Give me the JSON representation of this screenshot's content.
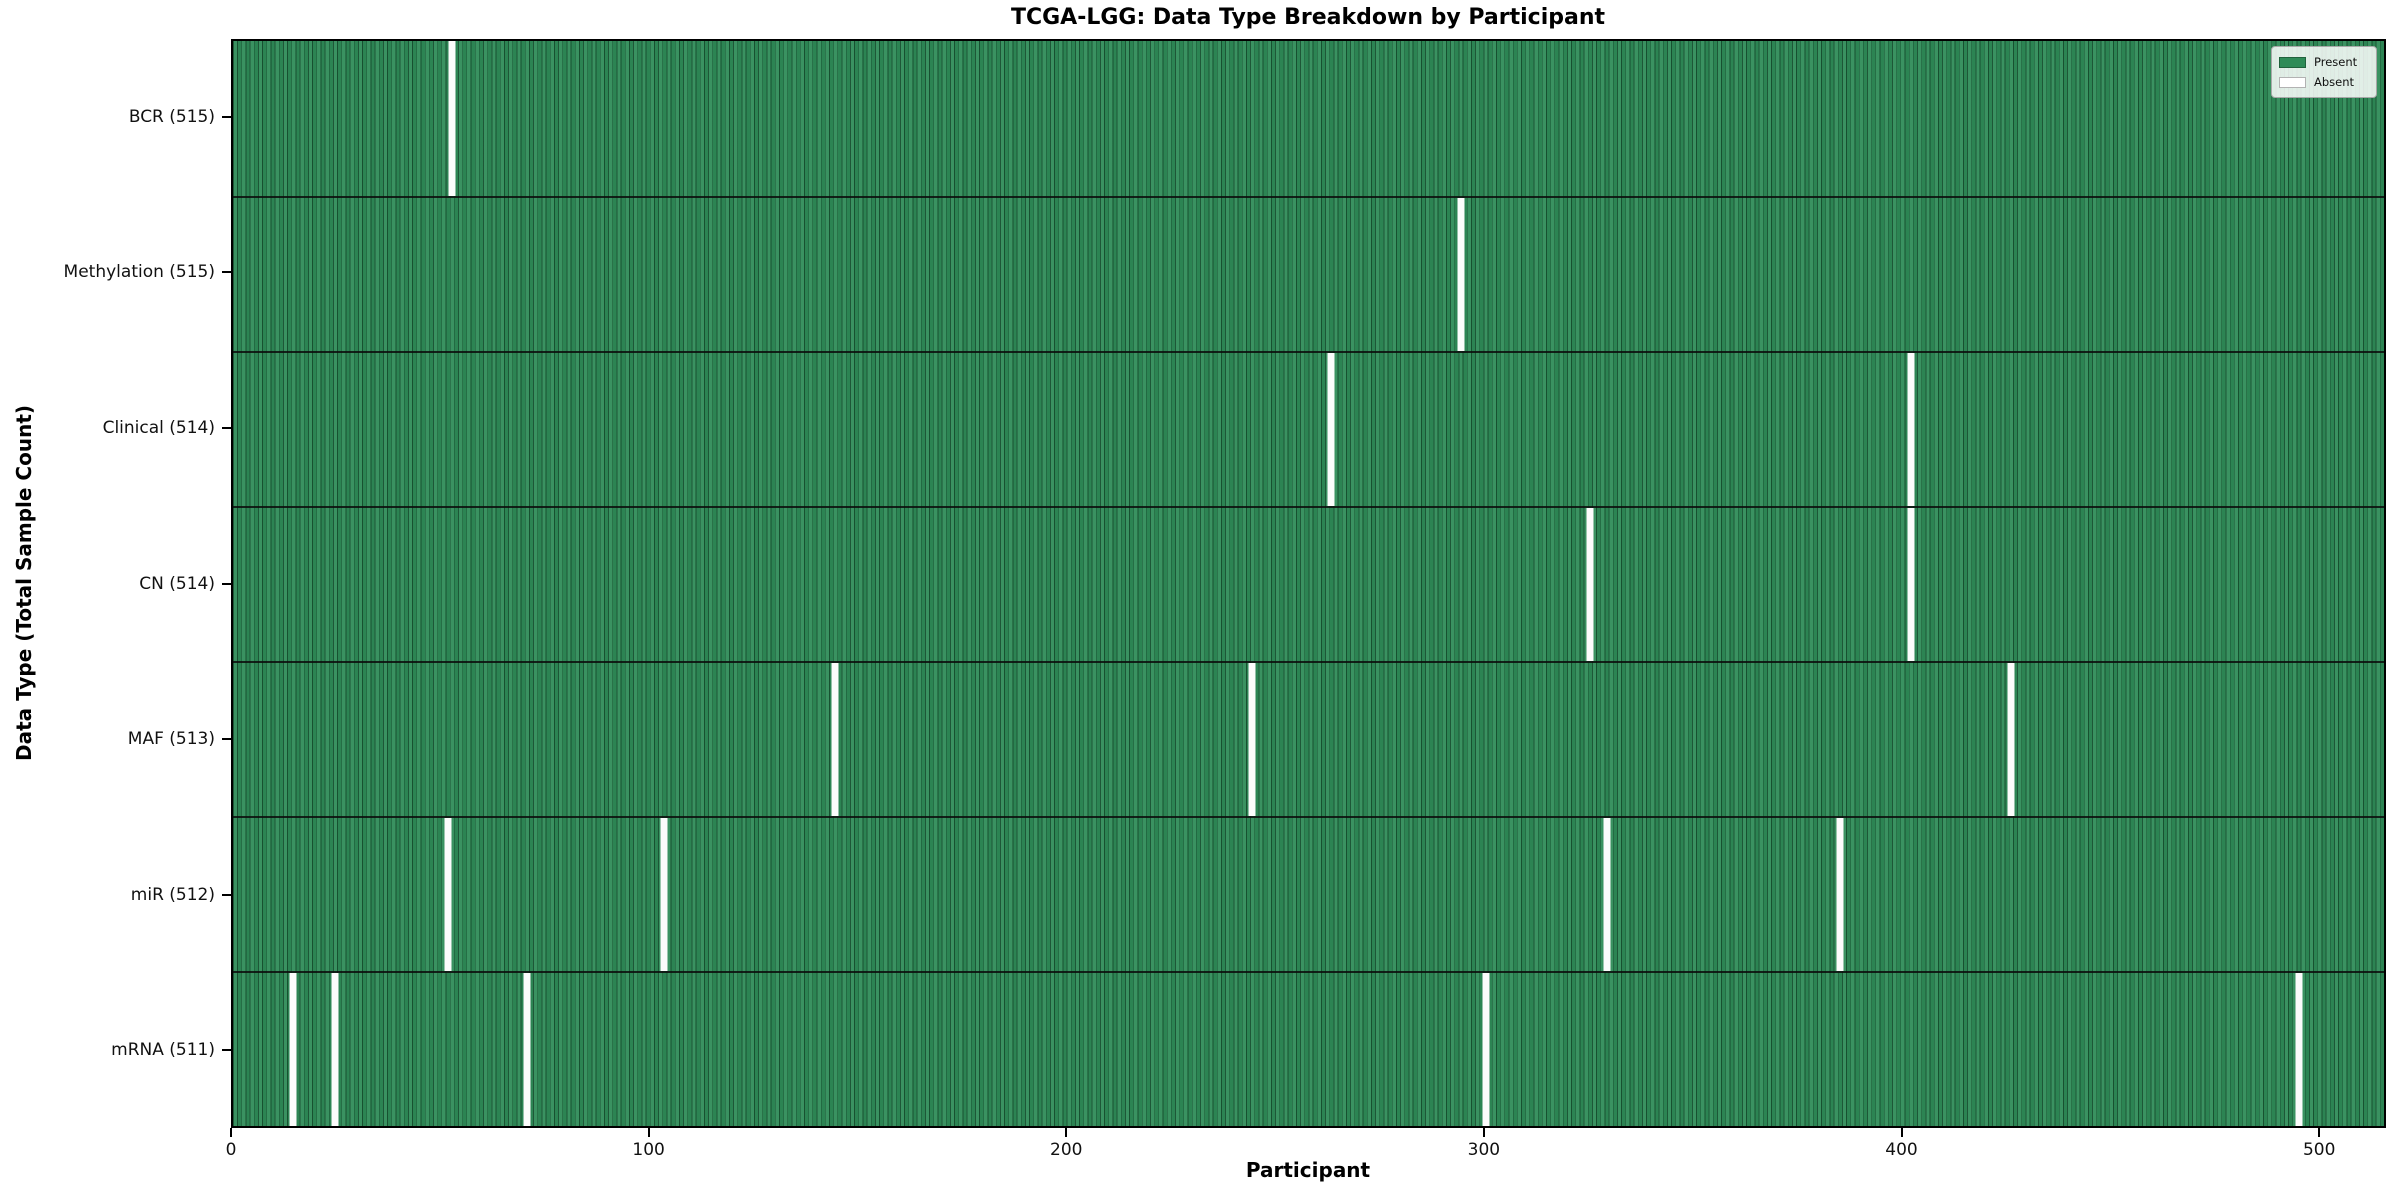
{
  "figure": {
    "title": "TCGA-LGG: Data Type Breakdown by Participant"
  },
  "chart_data": {
    "type": "heatmap",
    "title": "TCGA-LGG: Data Type Breakdown by Participant",
    "xlabel": "Participant",
    "ylabel": "Data Type (Total Sample Count)",
    "x_ticks": [
      0,
      100,
      200,
      300,
      400,
      500
    ],
    "xlim": [
      0,
      516
    ],
    "n_participants": 516,
    "grid": false,
    "legend": {
      "position": "upper-right",
      "entries": [
        {
          "label": "Present",
          "color": "#2e8b57"
        },
        {
          "label": "Absent",
          "color": "#ffffff"
        }
      ]
    },
    "rows": [
      {
        "name": "BCR",
        "label": "BCR (515)",
        "total": 515,
        "absent_participants": [
          52
        ]
      },
      {
        "name": "Methylation",
        "label": "Methylation (515)",
        "total": 515,
        "absent_participants": [
          294
        ]
      },
      {
        "name": "Clinical",
        "label": "Clinical (514)",
        "total": 514,
        "absent_participants": [
          263,
          402
        ]
      },
      {
        "name": "CN",
        "label": "CN (514)",
        "total": 514,
        "absent_participants": [
          325,
          402
        ]
      },
      {
        "name": "MAF",
        "label": "MAF (513)",
        "total": 513,
        "absent_participants": [
          144,
          244,
          426
        ]
      },
      {
        "name": "miR",
        "label": "miR (512)",
        "total": 512,
        "absent_participants": [
          51,
          103,
          329,
          385
        ]
      },
      {
        "name": "mRNA",
        "label": "mRNA (511)",
        "total": 511,
        "absent_participants": [
          14,
          24,
          70,
          300,
          495
        ]
      }
    ],
    "colors": {
      "present": "#2e8b57",
      "absent": "#ffffff",
      "cell_edge": "#123d24",
      "text": "#000000"
    }
  }
}
